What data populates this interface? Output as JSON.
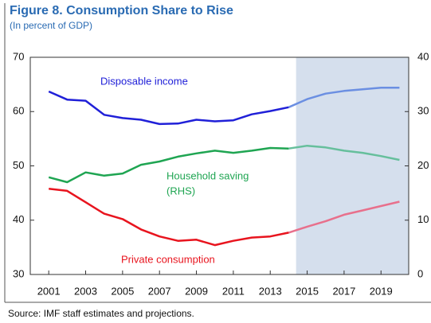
{
  "chart_data": {
    "type": "line",
    "title": "Figure 8. Consumption Share to Rise",
    "subtitle": "(In percent of GDP)",
    "source": "Source: IMF staff estimates and projections.",
    "x": [
      2001,
      2002,
      2003,
      2004,
      2005,
      2006,
      2007,
      2008,
      2009,
      2010,
      2011,
      2012,
      2013,
      2014,
      2015,
      2016,
      2017,
      2018,
      2019,
      2020
    ],
    "xlim": [
      2000,
      2020.5
    ],
    "xticks": [
      2001,
      2003,
      2005,
      2007,
      2009,
      2011,
      2013,
      2015,
      2017,
      2019
    ],
    "ylim": [
      30,
      70
    ],
    "yticks": [
      30,
      40,
      50,
      60,
      70
    ],
    "y2lim": [
      0,
      40
    ],
    "y2ticks": [
      0,
      10,
      20,
      30,
      40
    ],
    "projection_start": 2014,
    "shaded_region": [
      2014.4,
      2020.5
    ],
    "shade_color": "#d5dfed",
    "series": [
      {
        "name": "Disposable income",
        "color": "#2020d8",
        "projection_color": "#6b8fe2",
        "values": [
          63.7,
          62.2,
          62.0,
          59.4,
          58.8,
          58.5,
          57.7,
          57.8,
          58.5,
          58.2,
          58.4,
          59.5,
          60.1,
          60.8,
          62.3,
          63.3,
          63.8,
          64.1,
          64.4,
          64.4
        ]
      },
      {
        "name": "Household saving",
        "color": "#1fa552",
        "projection_color": "#66bf9c",
        "axis": "y2",
        "values": [
          17.9,
          17.0,
          18.8,
          18.2,
          18.6,
          20.2,
          20.8,
          21.7,
          22.3,
          22.8,
          22.4,
          22.8,
          23.3,
          23.2,
          23.7,
          23.4,
          22.8,
          22.4,
          21.8,
          21.1
        ]
      },
      {
        "name": "Private consumption",
        "color": "#e8141e",
        "projection_color": "#e8708c",
        "values": [
          45.8,
          45.4,
          43.3,
          41.2,
          40.2,
          38.3,
          37.0,
          36.2,
          36.4,
          35.4,
          36.2,
          36.8,
          37.0,
          37.7,
          38.8,
          39.8,
          41.0,
          41.8,
          42.6,
          43.4
        ]
      }
    ],
    "annotations": [
      "Disposable income",
      "Household saving",
      "(RHS)",
      "Private consumption"
    ]
  }
}
